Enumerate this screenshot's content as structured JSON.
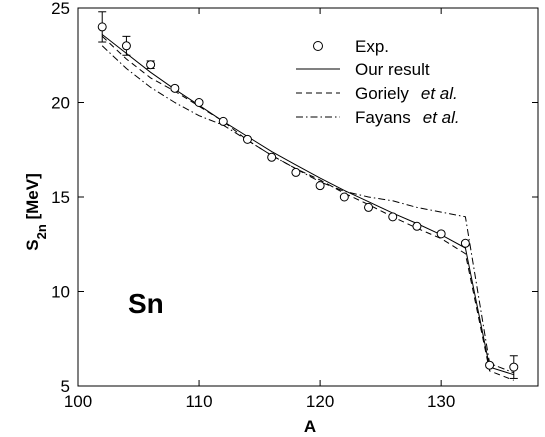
{
  "chart_data": {
    "type": "line",
    "xlabel": "A",
    "ylabel_main": "S",
    "ylabel_sub": "2n",
    "ylabel_unit": " [MeV]",
    "xlim": [
      100,
      138
    ],
    "ylim": [
      5,
      25
    ],
    "xticks": [
      100,
      110,
      120,
      130
    ],
    "yticks": [
      5,
      10,
      15,
      20,
      25
    ],
    "grid": false,
    "legend_position": "top-right",
    "annotation": "Sn",
    "series": [
      {
        "name": "Exp.",
        "style": "circle-markers-with-error-bars",
        "points": [
          {
            "x": 102,
            "y": 24.0,
            "err": 0.8
          },
          {
            "x": 104,
            "y": 23.0,
            "err": 0.5
          },
          {
            "x": 106,
            "y": 22.0,
            "err": 0.2
          },
          {
            "x": 108,
            "y": 20.75,
            "err": 0.1
          },
          {
            "x": 110,
            "y": 20.0,
            "err": 0.1
          },
          {
            "x": 112,
            "y": 19.0,
            "err": 0.05
          },
          {
            "x": 114,
            "y": 18.05,
            "err": 0.05
          },
          {
            "x": 116,
            "y": 17.1,
            "err": 0.05
          },
          {
            "x": 118,
            "y": 16.3,
            "err": 0.05
          },
          {
            "x": 120,
            "y": 15.6,
            "err": 0.05
          },
          {
            "x": 122,
            "y": 15.0,
            "err": 0.05
          },
          {
            "x": 124,
            "y": 14.45,
            "err": 0.05
          },
          {
            "x": 126,
            "y": 13.95,
            "err": 0.05
          },
          {
            "x": 128,
            "y": 13.45,
            "err": 0.05
          },
          {
            "x": 130,
            "y": 13.05,
            "err": 0.05
          },
          {
            "x": 132,
            "y": 12.55,
            "err": 0.1
          },
          {
            "x": 134,
            "y": 6.1,
            "err": 0.1
          },
          {
            "x": 136,
            "y": 6.0,
            "err": 0.6
          }
        ]
      },
      {
        "name": "Our result",
        "style": "solid",
        "x": [
          102,
          104,
          106,
          108,
          110,
          112,
          114,
          116,
          118,
          120,
          122,
          124,
          126,
          128,
          130,
          132,
          134,
          136
        ],
        "y": [
          23.6,
          22.6,
          21.6,
          20.7,
          19.85,
          19.0,
          18.2,
          17.4,
          16.7,
          16.0,
          15.35,
          14.75,
          14.15,
          13.6,
          13.0,
          12.3,
          6.0,
          5.6
        ]
      },
      {
        "name": "Goriely",
        "name_suffix": "et al.",
        "style": "dashed",
        "x": [
          102,
          104,
          106,
          108,
          110,
          112,
          114,
          116,
          118,
          120,
          122,
          124,
          126,
          128,
          130,
          132,
          134,
          136
        ],
        "y": [
          23.5,
          22.3,
          21.3,
          20.6,
          19.8,
          19.0,
          18.0,
          17.2,
          16.5,
          15.9,
          15.2,
          14.6,
          13.95,
          13.35,
          12.8,
          12.0,
          5.8,
          5.3
        ]
      },
      {
        "name": "Fayans",
        "name_suffix": "et al.",
        "style": "dashdot",
        "x": [
          102,
          104,
          106,
          108,
          110,
          112,
          114,
          116,
          118,
          120,
          122,
          124,
          126,
          128,
          130,
          132,
          134,
          136
        ],
        "y": [
          23.0,
          21.8,
          20.8,
          20.0,
          19.3,
          18.8,
          18.0,
          17.2,
          16.5,
          15.8,
          15.3,
          15.0,
          14.8,
          14.45,
          14.2,
          13.95,
          6.2,
          5.7
        ]
      }
    ]
  }
}
